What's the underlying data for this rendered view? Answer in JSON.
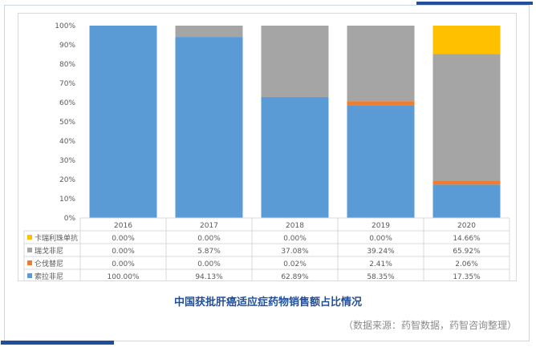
{
  "caption": "中国获批肝癌适应症药物销售额占比情况",
  "source_note": "（数据来源：药智数据，药智咨询整理）",
  "colors": {
    "accent": "#1f4e9b",
    "caption": "#1f4e9b"
  },
  "chart_data": {
    "type": "bar",
    "stacked": true,
    "normalized": true,
    "categories": [
      "2016",
      "2017",
      "2018",
      "2019",
      "2020"
    ],
    "ylim": [
      0,
      100
    ],
    "yticks": [
      "0%",
      "10%",
      "20%",
      "30%",
      "40%",
      "50%",
      "60%",
      "70%",
      "80%",
      "90%",
      "100%"
    ],
    "grid": false,
    "legend_placement": "data-table-left",
    "series": [
      {
        "name": "索拉非尼",
        "color": "#5b9bd5",
        "values": [
          100.0,
          94.13,
          62.89,
          58.35,
          17.35
        ],
        "labels": [
          "100.00%",
          "94.13%",
          "62.89%",
          "58.35%",
          "17.35%"
        ]
      },
      {
        "name": "仑伐替尼",
        "color": "#ed7d31",
        "values": [
          0.0,
          0.0,
          0.02,
          2.41,
          2.06
        ],
        "labels": [
          "0.00%",
          "0.00%",
          "0.02%",
          "2.41%",
          "2.06%"
        ]
      },
      {
        "name": "瑞戈非尼",
        "color": "#a5a5a5",
        "values": [
          0.0,
          5.87,
          37.08,
          39.24,
          65.92
        ],
        "labels": [
          "0.00%",
          "5.87%",
          "37.08%",
          "39.24%",
          "65.92%"
        ]
      },
      {
        "name": "卡瑞利珠单抗",
        "color": "#ffc000",
        "values": [
          0.0,
          0.0,
          0.0,
          0.0,
          14.66
        ],
        "labels": [
          "0.00%",
          "0.00%",
          "0.00%",
          "0.00%",
          "14.66%"
        ]
      }
    ]
  }
}
